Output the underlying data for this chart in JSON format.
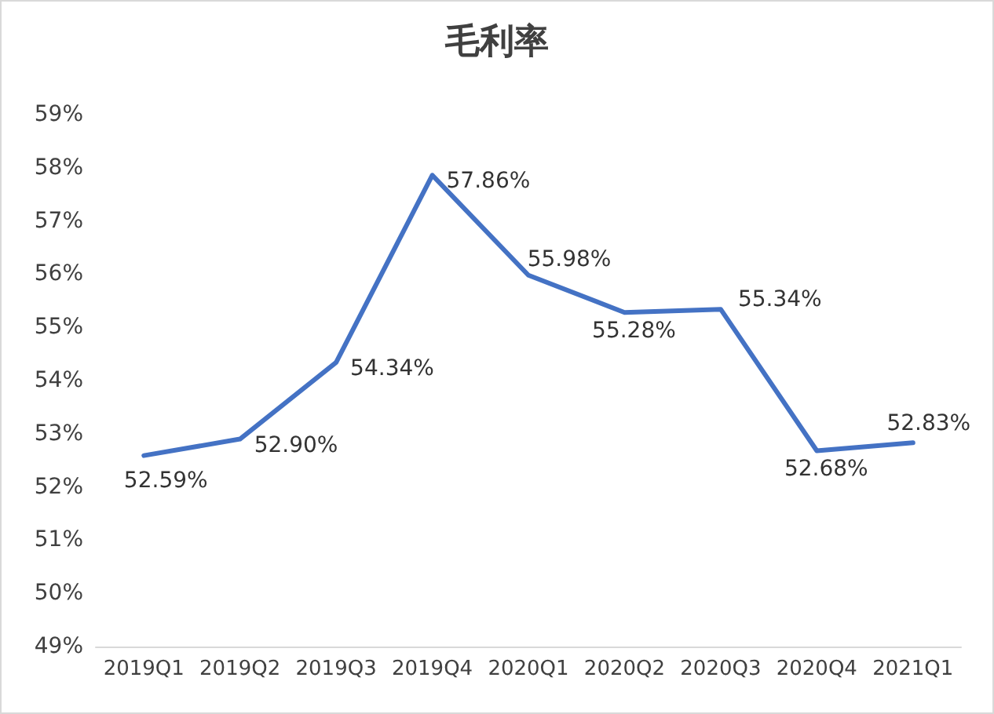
{
  "chart_data": {
    "type": "line",
    "title": "毛利率",
    "categories": [
      "2019Q1",
      "2019Q2",
      "2019Q3",
      "2019Q4",
      "2020Q1",
      "2020Q2",
      "2020Q3",
      "2020Q4",
      "2021Q1"
    ],
    "series": [
      {
        "color": "#4472c4",
        "values": [
          52.59,
          52.9,
          54.34,
          57.86,
          55.98,
          55.28,
          55.34,
          52.68,
          52.83
        ],
        "value_labels": [
          "52.59%",
          "52.90%",
          "54.34%",
          "57.86%",
          "55.98%",
          "55.28%",
          "55.34%",
          "52.68%",
          "52.83%"
        ]
      }
    ],
    "ylim": [
      49,
      59
    ],
    "yticks": [
      {
        "value": 49,
        "label": "49%"
      },
      {
        "value": 50,
        "label": "50%"
      },
      {
        "value": 51,
        "label": "51%"
      },
      {
        "value": 52,
        "label": "52%"
      },
      {
        "value": 53,
        "label": "53%"
      },
      {
        "value": 54,
        "label": "54%"
      },
      {
        "value": 55,
        "label": "55%"
      },
      {
        "value": 56,
        "label": "56%"
      },
      {
        "value": 57,
        "label": "57%"
      },
      {
        "value": 58,
        "label": "58%"
      },
      {
        "value": 59,
        "label": "59%"
      }
    ],
    "grid": false,
    "marker": "none",
    "line_style": "solid"
  }
}
